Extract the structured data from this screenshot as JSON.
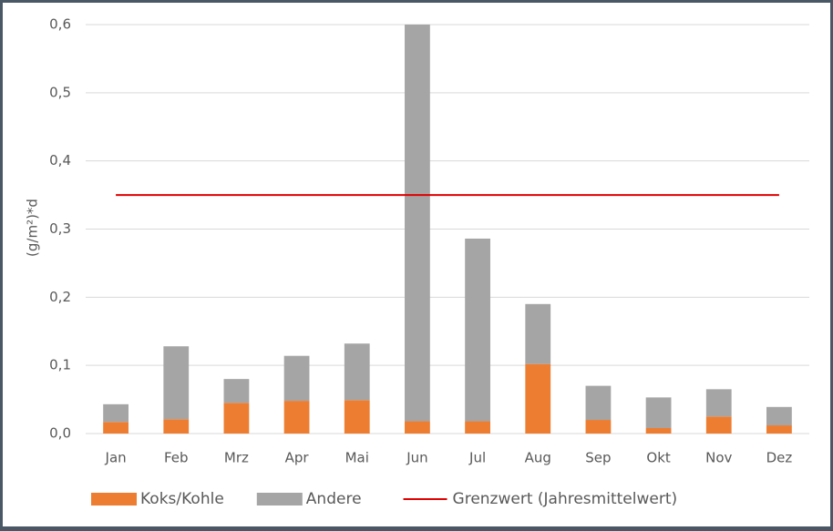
{
  "chart_data": {
    "type": "bar",
    "stacked": true,
    "y_label": "(g/m²)*d",
    "categories": [
      "Jan",
      "Feb",
      "Mrz",
      "Apr",
      "Mai",
      "Jun",
      "Jul",
      "Aug",
      "Sep",
      "Okt",
      "Nov",
      "Dez"
    ],
    "series": [
      {
        "name": "Koks/Kohle",
        "type": "bar",
        "color": "#ed7d31",
        "values": [
          0.017,
          0.021,
          0.045,
          0.048,
          0.049,
          0.018,
          0.018,
          0.102,
          0.02,
          0.008,
          0.025,
          0.012
        ]
      },
      {
        "name": "Andere",
        "type": "bar",
        "color": "#a5a5a5",
        "values": [
          0.026,
          0.107,
          0.035,
          0.066,
          0.083,
          0.582,
          0.268,
          0.088,
          0.05,
          0.045,
          0.04,
          0.027
        ]
      },
      {
        "name": "Grenzwert (Jahresmittelwert)",
        "type": "line",
        "color": "#e00000",
        "values": [
          0.35,
          0.35,
          0.35,
          0.35,
          0.35,
          0.35,
          0.35,
          0.35,
          0.35,
          0.35,
          0.35,
          0.35
        ]
      }
    ],
    "ylim": [
      0,
      0.6
    ],
    "yticks": [
      {
        "value": 0,
        "label": "0,0"
      },
      {
        "value": 0.1,
        "label": "0,1"
      },
      {
        "value": 0.2,
        "label": "0,2"
      },
      {
        "value": 0.3,
        "label": "0,3"
      },
      {
        "value": 0.4,
        "label": "0,4"
      },
      {
        "value": 0.5,
        "label": "0,5"
      },
      {
        "value": 0.6,
        "label": "0,6"
      }
    ],
    "grid": true,
    "legend": "bottom"
  }
}
